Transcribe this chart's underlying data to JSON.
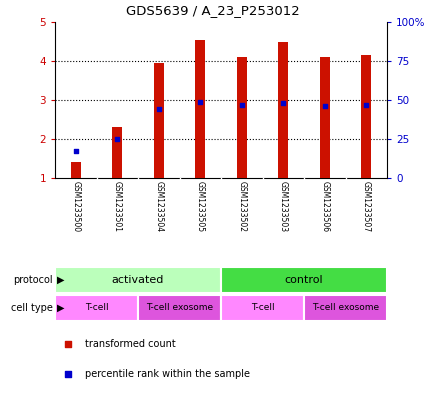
{
  "title": "GDS5639 / A_23_P253012",
  "samples": [
    "GSM1233500",
    "GSM1233501",
    "GSM1233504",
    "GSM1233505",
    "GSM1233502",
    "GSM1233503",
    "GSM1233506",
    "GSM1233507"
  ],
  "transformed_counts": [
    1.4,
    2.3,
    3.95,
    4.55,
    4.1,
    4.5,
    4.1,
    4.15
  ],
  "percentile_ranks": [
    0.17,
    0.25,
    0.44,
    0.49,
    0.47,
    0.48,
    0.46,
    0.47
  ],
  "ylim_left": [
    1,
    5
  ],
  "ylim_right": [
    0,
    100
  ],
  "yticks_left": [
    1,
    2,
    3,
    4,
    5
  ],
  "yticks_right": [
    0,
    25,
    50,
    75,
    100
  ],
  "ytick_labels_right": [
    "0",
    "25",
    "50",
    "75",
    "100%"
  ],
  "protocol_groups": [
    {
      "label": "activated",
      "span": [
        0,
        4
      ],
      "color": "#bbffbb"
    },
    {
      "label": "control",
      "span": [
        4,
        8
      ],
      "color": "#44dd44"
    }
  ],
  "cell_type_groups": [
    {
      "label": "T-cell",
      "span": [
        0,
        2
      ],
      "color": "#ff88ff"
    },
    {
      "label": "T-cell exosome",
      "span": [
        2,
        4
      ],
      "color": "#dd55dd"
    },
    {
      "label": "T-cell",
      "span": [
        4,
        6
      ],
      "color": "#ff88ff"
    },
    {
      "label": "T-cell exosome",
      "span": [
        6,
        8
      ],
      "color": "#dd55dd"
    }
  ],
  "bar_color": "#cc1100",
  "dot_color": "#0000cc",
  "bar_width": 0.25,
  "legend_items": [
    {
      "label": "transformed count",
      "color": "#cc1100"
    },
    {
      "label": "percentile rank within the sample",
      "color": "#0000cc"
    }
  ],
  "background_color": "#ffffff",
  "sample_bg_color": "#cccccc",
  "axis_label_color_left": "#cc0000",
  "axis_label_color_right": "#0000cc"
}
